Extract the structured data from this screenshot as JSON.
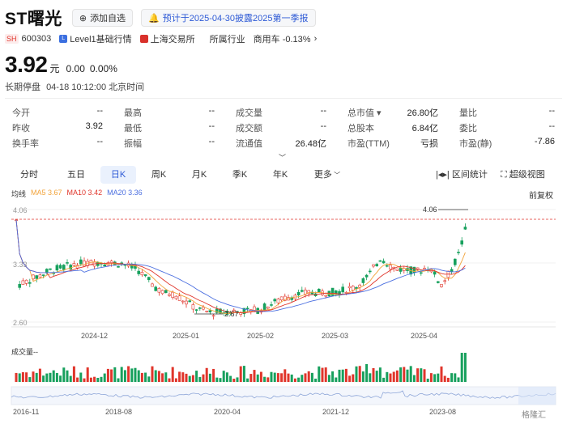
{
  "header": {
    "title": "ST曙光",
    "watch_label": "添加自选",
    "forecast_label": "预计于2025-04-30披露2025第一季报"
  },
  "subheader": {
    "market_badge": "SH",
    "code": "600303",
    "level_label": "Level1基础行情",
    "exchange_label": "上海交易所",
    "industry_label": "所属行业",
    "industry_value": "商用车 -0.13%"
  },
  "quote": {
    "price": "3.92",
    "unit": "元",
    "change": "0.00",
    "change_pct": "0.00%",
    "status": "长期停盘",
    "time": "04-18 10:12:00 北京时间"
  },
  "stats": {
    "rows": [
      [
        {
          "label": "今开",
          "value": "--"
        },
        {
          "label": "最高",
          "value": "--"
        },
        {
          "label": "成交量",
          "value": "--"
        },
        {
          "label": "总市值 ▾",
          "value": "26.80亿"
        },
        {
          "label": "量比",
          "value": "--"
        }
      ],
      [
        {
          "label": "昨收",
          "value": "3.92"
        },
        {
          "label": "最低",
          "value": "--"
        },
        {
          "label": "成交额",
          "value": "--"
        },
        {
          "label": "总股本",
          "value": "6.84亿"
        },
        {
          "label": "委比",
          "value": "--"
        }
      ],
      [
        {
          "label": "换手率",
          "value": "--"
        },
        {
          "label": "振幅",
          "value": "--"
        },
        {
          "label": "流通值",
          "value": "26.48亿"
        },
        {
          "label": "市盈(TTM)",
          "value": "亏损"
        },
        {
          "label": "市盈(静)",
          "value": "-7.86"
        }
      ]
    ],
    "expand_icon": "chevron-down-icon"
  },
  "tabs": [
    "分时",
    "五日",
    "日K",
    "周K",
    "月K",
    "季K",
    "年K",
    "更多"
  ],
  "active_tab": "日K",
  "tools": {
    "interval_label": "区间统计",
    "fullscreen_label": "超级视图",
    "adjust_label": "前复权"
  },
  "legend": {
    "ma_label": "均线",
    "ma5": "MA5 3.67",
    "ma10": "MA10 3.42",
    "ma20": "MA20 3.36"
  },
  "colors": {
    "up": "#e0352b",
    "down": "#17a05d",
    "ma5": "#f2a33a",
    "ma10": "#e0352b",
    "ma20": "#4b6fe0",
    "accent": "#2f5bd6"
  },
  "chart_data": {
    "type": "candlestick",
    "y_ticks": [
      "4.06",
      "3.33",
      "2.60"
    ],
    "ylim": [
      2.6,
      4.06
    ],
    "x_ticks": [
      "2024-12",
      "2025-01",
      "2025-02",
      "2025-03",
      "2025-04"
    ],
    "high_label": "4.06",
    "low_label": "2.67",
    "volume_label": "成交量--",
    "overview_ticks": [
      "2016-11",
      "2018-08",
      "2020-04",
      "2021-12",
      "2023-08"
    ]
  },
  "watermark": "格隆汇"
}
